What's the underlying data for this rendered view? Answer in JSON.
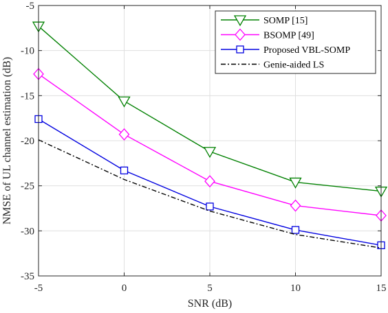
{
  "chart_data": {
    "type": "line",
    "xlabel": "SNR (dB)",
    "ylabel": "NMSE of UL channel estimation (dB)",
    "xlim": [
      -5,
      15
    ],
    "ylim": [
      -35,
      -5
    ],
    "xticks": [
      -5,
      0,
      5,
      10,
      15
    ],
    "yticks": [
      -5,
      -10,
      -15,
      -20,
      -25,
      -30,
      -35
    ],
    "grid": true,
    "legend_position": "top-right",
    "x": [
      -5,
      0,
      5,
      10,
      15
    ],
    "series": [
      {
        "name": "SOMP [15]",
        "values": [
          -7.3,
          -15.6,
          -21.2,
          -24.6,
          -25.6
        ],
        "color": "#008000",
        "marker": "triangle-down",
        "dash": "solid"
      },
      {
        "name": "BSOMP [49]",
        "values": [
          -12.6,
          -19.3,
          -24.5,
          -27.2,
          -28.3
        ],
        "color": "#ff00ff",
        "marker": "diamond",
        "dash": "solid"
      },
      {
        "name": "Proposed VBL-SOMP",
        "values": [
          -17.6,
          -23.3,
          -27.3,
          -29.9,
          -31.6
        ],
        "color": "#0000e0",
        "marker": "square",
        "dash": "solid"
      },
      {
        "name": "Genie-aided LS",
        "values": [
          -19.9,
          -24.3,
          -27.8,
          -30.4,
          -31.9
        ],
        "color": "#000000",
        "marker": "none",
        "dash": "dashdot"
      }
    ]
  }
}
